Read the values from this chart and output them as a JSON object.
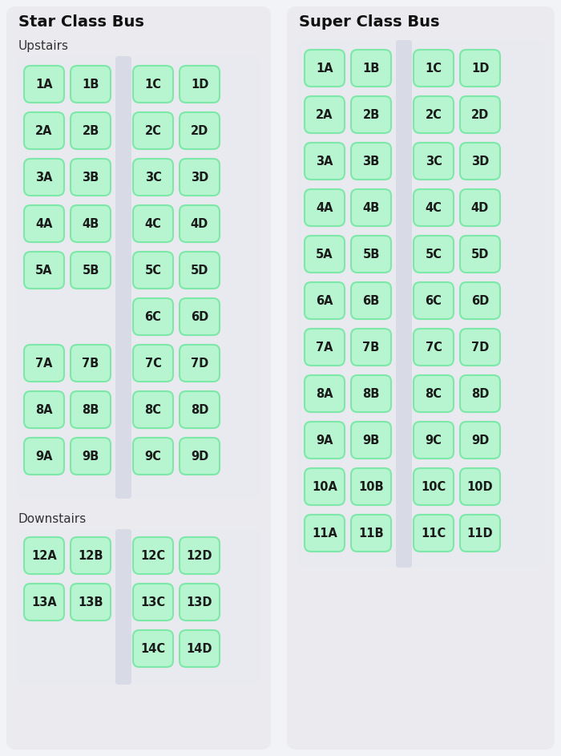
{
  "bg_color": "#f2f3f7",
  "panel_color": "#ebebef",
  "seat_bg_color": "#e8eaef",
  "aisle_color": "#d8dbe5",
  "seat_fill": "#b6f5cf",
  "seat_edge": "#7de8a8",
  "text_color": "#1a1a1a",
  "title_color": "#111111",
  "sublabel_color": "#333333",
  "star_title": "Star Class Bus",
  "star_upstairs_label": "Upstairs",
  "star_downstairs_label": "Downstairs",
  "super_title": "Super Class Bus",
  "star_upstairs_left": [
    "1A",
    "1B",
    "2A",
    "2B",
    "3A",
    "3B",
    "4A",
    "4B",
    "5A",
    "5B",
    "",
    "",
    "7A",
    "7B",
    "8A",
    "8B",
    "9A",
    "9B"
  ],
  "star_upstairs_right": [
    "1C",
    "1D",
    "2C",
    "2D",
    "3C",
    "3D",
    "4C",
    "4D",
    "5C",
    "5D",
    "6C",
    "6D",
    "7C",
    "7D",
    "8C",
    "8D",
    "9C",
    "9D"
  ],
  "star_downstairs_left": [
    "12A",
    "12B",
    "13A",
    "13B",
    "",
    ""
  ],
  "star_downstairs_right": [
    "12C",
    "12D",
    "13C",
    "13D",
    "14C",
    "14D"
  ],
  "super_left": [
    "1A",
    "1B",
    "2A",
    "2B",
    "3A",
    "3B",
    "4A",
    "4B",
    "5A",
    "5B",
    "6A",
    "6B",
    "7A",
    "7B",
    "8A",
    "8B",
    "9A",
    "9B",
    "10A",
    "10B",
    "11A",
    "11B"
  ],
  "super_right": [
    "1C",
    "1D",
    "2C",
    "2D",
    "3C",
    "3D",
    "4C",
    "4D",
    "5C",
    "5D",
    "6C",
    "6D",
    "7C",
    "7D",
    "8C",
    "8D",
    "9C",
    "9D",
    "10C",
    "10D",
    "11C",
    "11D"
  ]
}
